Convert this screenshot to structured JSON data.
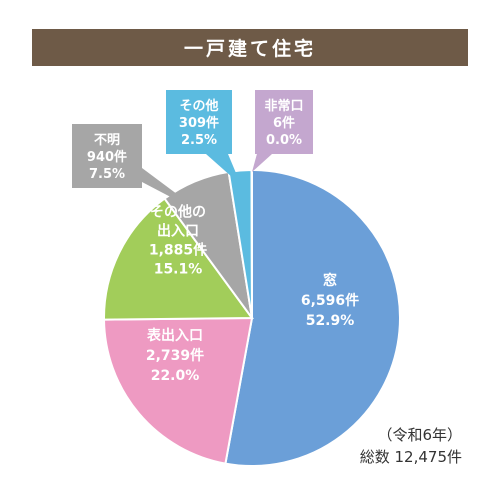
{
  "title": "一戸建て住宅",
  "note": {
    "era": "（令和6年）",
    "total_label": "総数",
    "total": "12,475件"
  },
  "chart_data": {
    "type": "pie",
    "start": "12 o'clock",
    "direction": "clockwise",
    "total": 12475,
    "unit": "件",
    "slices": [
      {
        "label": "窓",
        "count": "6,596件",
        "percent": "52.9%",
        "value": 6596,
        "pct": 52.9,
        "color": "#6b9fd8"
      },
      {
        "label": "表出入口",
        "count": "2,739件",
        "percent": "22.0%",
        "value": 2739,
        "pct": 22.0,
        "color": "#ee9ac2"
      },
      {
        "label": "その他の出入口",
        "count": "1,885件",
        "percent": "15.1%",
        "value": 1885,
        "pct": 15.1,
        "color": "#a2cd5a"
      },
      {
        "label": "不明",
        "count": "940件",
        "percent": "7.5%",
        "value": 940,
        "pct": 7.5,
        "color": "#a6a6a6"
      },
      {
        "label": "その他",
        "count": "309件",
        "percent": "2.5%",
        "value": 309,
        "pct": 2.5,
        "color": "#5bbbe0"
      },
      {
        "label": "非常口",
        "count": "6件",
        "percent": "0.0%",
        "value": 6,
        "pct": 0.0,
        "color": "#c4a7cf"
      }
    ]
  }
}
